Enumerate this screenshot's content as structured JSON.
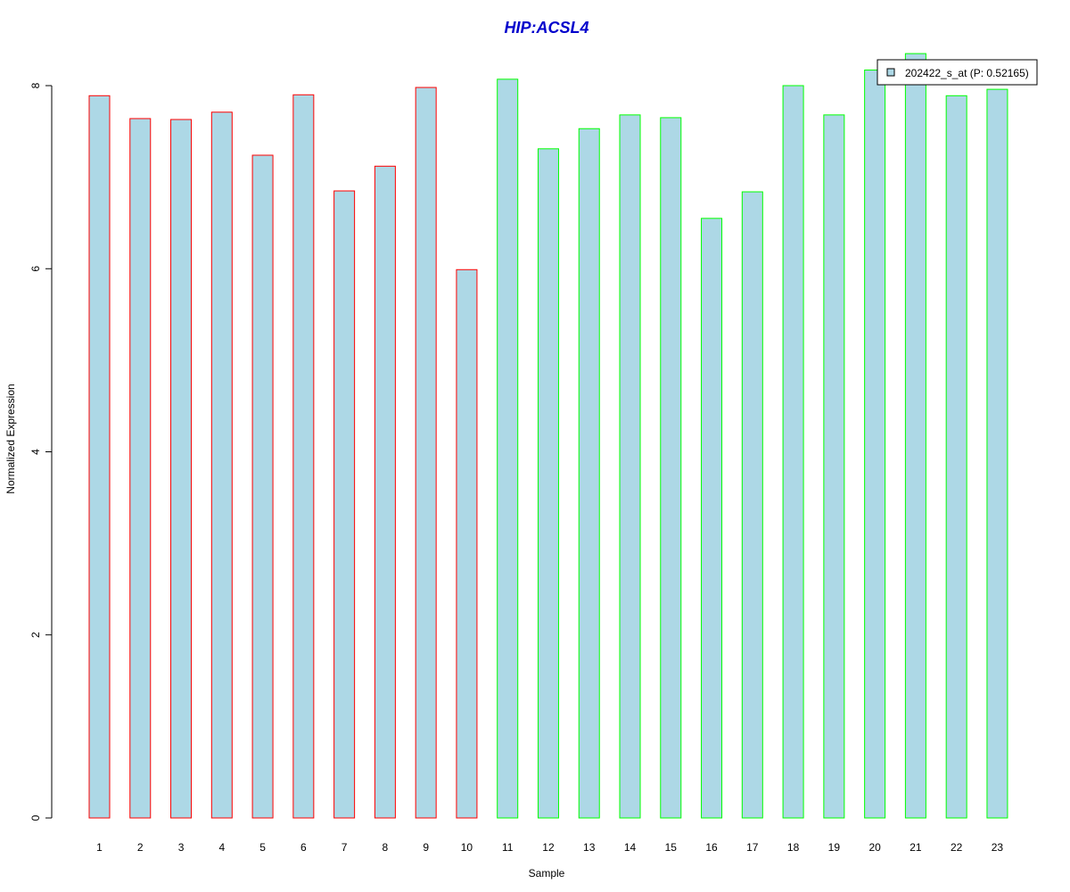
{
  "chart_data": {
    "type": "bar",
    "title": "HIP:ACSL4",
    "xlabel": "Sample",
    "ylabel": "Normalized Expression",
    "categories": [
      "1",
      "2",
      "3",
      "4",
      "5",
      "6",
      "7",
      "8",
      "9",
      "10",
      "11",
      "12",
      "13",
      "14",
      "15",
      "16",
      "17",
      "18",
      "19",
      "20",
      "21",
      "22",
      "23"
    ],
    "series": [
      {
        "name": "202422_s_at (P: 0.52165)",
        "values": [
          7.89,
          7.64,
          7.63,
          7.71,
          7.24,
          7.9,
          6.85,
          7.12,
          7.98,
          5.99,
          8.07,
          7.31,
          7.53,
          7.68,
          7.65,
          6.55,
          6.84,
          8.0,
          7.68,
          8.17,
          8.35,
          7.89,
          7.96
        ]
      }
    ],
    "group_colors": [
      "#ff0000",
      "#ff0000",
      "#ff0000",
      "#ff0000",
      "#ff0000",
      "#ff0000",
      "#ff0000",
      "#ff0000",
      "#ff0000",
      "#ff0000",
      "#00ff00",
      "#00ff00",
      "#00ff00",
      "#00ff00",
      "#00ff00",
      "#00ff00",
      "#00ff00",
      "#00ff00",
      "#00ff00",
      "#00ff00",
      "#00ff00",
      "#00ff00",
      "#00ff00"
    ],
    "bar_fill": "#add8e6",
    "title_color": "#0000cc",
    "yticks": [
      0,
      2,
      4,
      6,
      8
    ],
    "ylim": [
      0,
      8.4
    ],
    "legend": {
      "label": "202422_s_at (P: 0.52165)",
      "placement": "top-right"
    },
    "grid": false
  }
}
